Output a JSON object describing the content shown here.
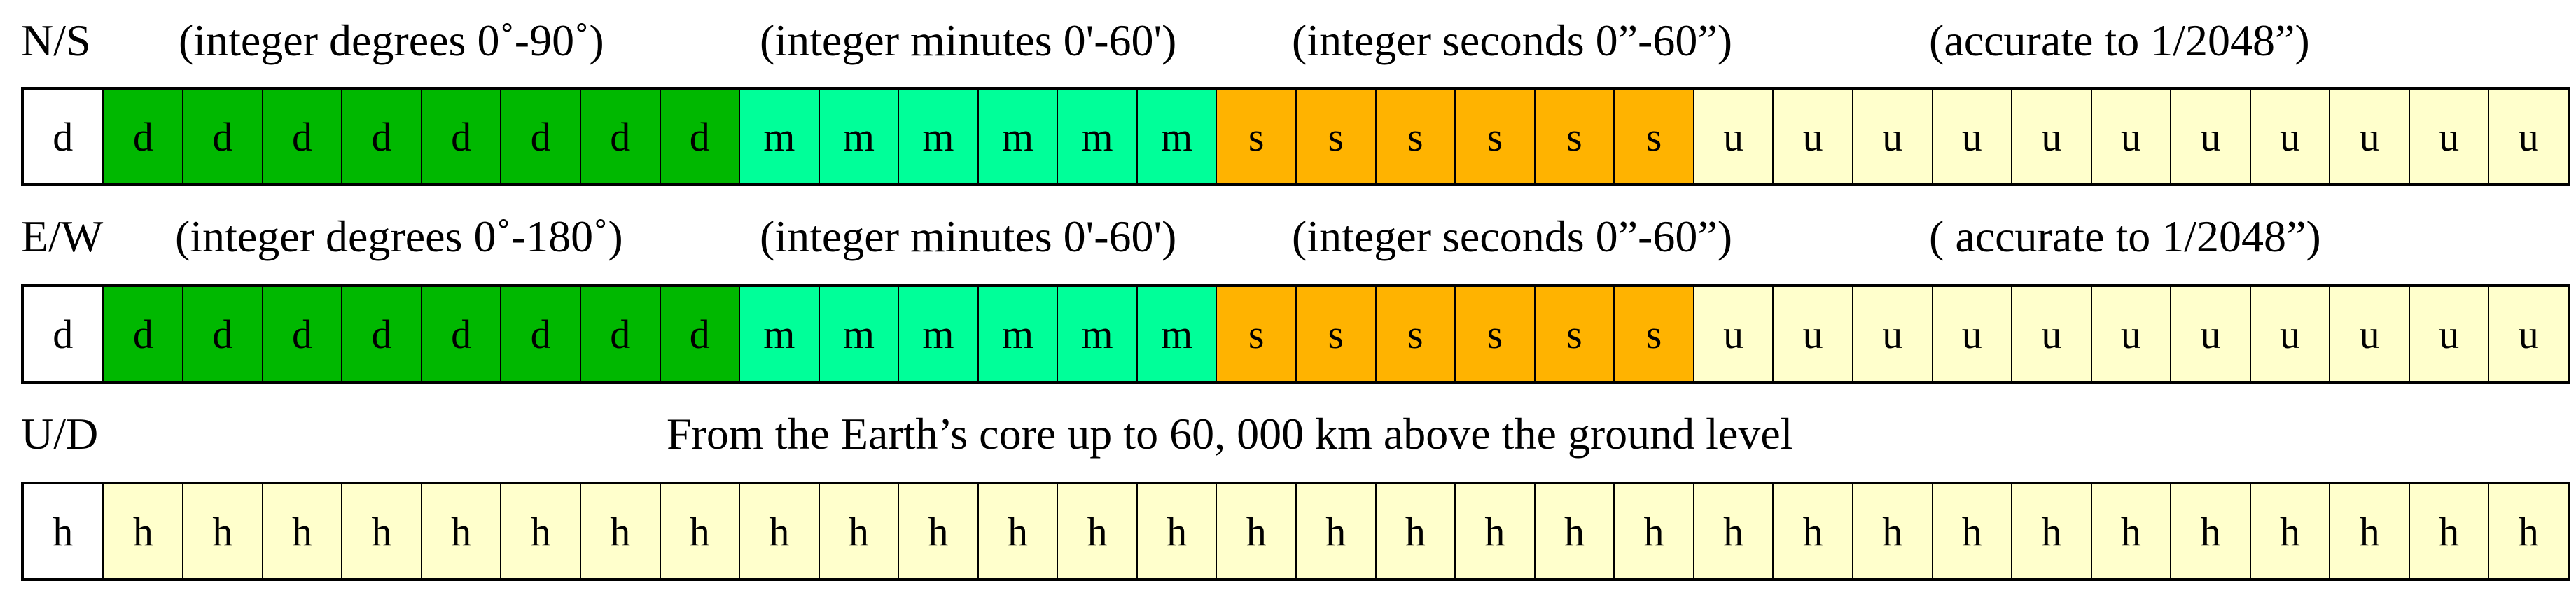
{
  "rows": [
    {
      "id": "ns",
      "axis_label": "N/S",
      "notes": [
        "(integer degrees 0˚-90˚)",
        "(integer minutes 0'-60')",
        "(integer seconds 0”-60”)",
        "(accurate to 1/2048”)"
      ],
      "cells": [
        {
          "t": "d",
          "n": 1,
          "kind": "sign"
        },
        {
          "t": "d",
          "n": 8,
          "kind": "degrees"
        },
        {
          "t": "m",
          "n": 6,
          "kind": "minutes"
        },
        {
          "t": "s",
          "n": 6,
          "kind": "seconds"
        },
        {
          "t": "u",
          "n": 11,
          "kind": "fraction"
        }
      ]
    },
    {
      "id": "ew",
      "axis_label": "E/W",
      "notes": [
        "(integer degrees 0˚-180˚)",
        "(integer minutes 0'-60')",
        "(integer seconds 0”-60”)",
        "( accurate to 1/2048”)"
      ],
      "cells": [
        {
          "t": "d",
          "n": 1,
          "kind": "sign"
        },
        {
          "t": "d",
          "n": 8,
          "kind": "degrees"
        },
        {
          "t": "m",
          "n": 6,
          "kind": "minutes"
        },
        {
          "t": "s",
          "n": 6,
          "kind": "seconds"
        },
        {
          "t": "u",
          "n": 11,
          "kind": "fraction"
        }
      ]
    },
    {
      "id": "ud",
      "axis_label": "U/D",
      "notes": [
        "From the Earth’s core up to 60, 000 km above the ground level"
      ],
      "cells": [
        {
          "t": "h",
          "n": 1,
          "kind": "sign"
        },
        {
          "t": "h",
          "n": 31,
          "kind": "height"
        }
      ]
    }
  ],
  "colors": {
    "sign": "#ffffff",
    "degrees": "#00b800",
    "minutes": "#00ff99",
    "seconds": "#ffb300",
    "fraction": "#ffffcc",
    "height": "#ffffcc"
  }
}
